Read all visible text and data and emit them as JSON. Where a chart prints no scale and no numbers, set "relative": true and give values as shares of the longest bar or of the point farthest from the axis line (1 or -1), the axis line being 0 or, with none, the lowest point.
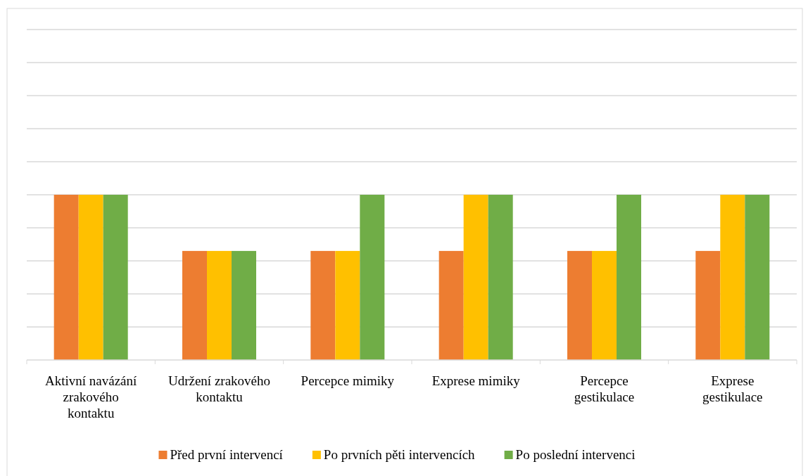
{
  "chart_data": {
    "type": "bar",
    "relative": true,
    "grid": true,
    "legend": "bottom",
    "categories": [
      "Aktivní navázání zrakového kontaktu",
      "Udržení zrakového kontaktu",
      "Percepce mimiky",
      "Exprese mimiky",
      "Percepce gestikulace",
      "Exprese gestikulace"
    ],
    "series": [
      {
        "name": "Před první intervencí",
        "color": "#ed7d31",
        "values": [
          1,
          0.66,
          0.66,
          0.66,
          0.66,
          0.66
        ]
      },
      {
        "name": "Po prvních pěti intervencích",
        "color": "#ffc000",
        "values": [
          1,
          0.66,
          0.66,
          1,
          0.66,
          1
        ]
      },
      {
        "name": "Po poslední intervenci",
        "color": "#70ad47",
        "values": [
          1,
          0.66,
          1,
          1,
          1,
          1
        ]
      }
    ]
  }
}
